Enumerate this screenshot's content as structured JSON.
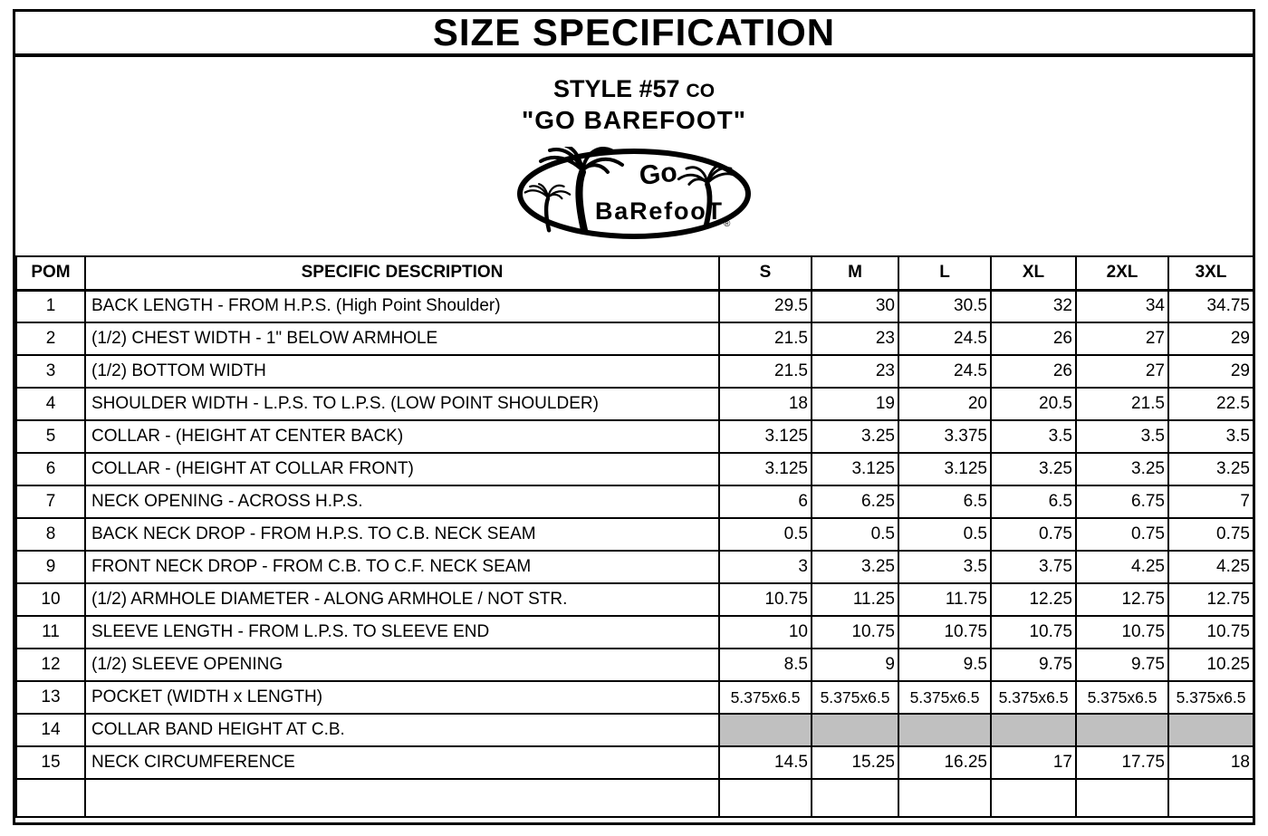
{
  "title": "SIZE SPECIFICATION",
  "header": {
    "style_label": "STYLE #57",
    "style_suffix": "CO",
    "product_name": "\"GO BAREFOOT\""
  },
  "logo": {
    "word_top": "Go",
    "word_bottom": "BaRefooT",
    "registered_mark": "®",
    "icon": "palm-tree"
  },
  "colors": {
    "border": "#000000",
    "shaded_cell": "#c0c0c0",
    "background": "#ffffff"
  },
  "table": {
    "headers": [
      "POM",
      "SPECIFIC DESCRIPTION",
      "S",
      "M",
      "L",
      "XL",
      "2XL",
      "3XL"
    ],
    "rows": [
      {
        "pom": "1",
        "desc": "BACK LENGTH - FROM H.P.S. (High Point Shoulder)",
        "values": [
          "29.5",
          "30",
          "30.5",
          "32",
          "34",
          "34.75"
        ]
      },
      {
        "pom": "2",
        "desc": "(1/2) CHEST WIDTH - 1\" BELOW ARMHOLE",
        "values": [
          "21.5",
          "23",
          "24.5",
          "26",
          "27",
          "29"
        ]
      },
      {
        "pom": "3",
        "desc": "(1/2) BOTTOM WIDTH",
        "values": [
          "21.5",
          "23",
          "24.5",
          "26",
          "27",
          "29"
        ]
      },
      {
        "pom": "4",
        "desc": "SHOULDER WIDTH - L.P.S. TO L.P.S. (LOW POINT SHOULDER)",
        "values": [
          "18",
          "19",
          "20",
          "20.5",
          "21.5",
          "22.5"
        ]
      },
      {
        "pom": "5",
        "desc": "COLLAR - (HEIGHT AT CENTER BACK)",
        "values": [
          "3.125",
          "3.25",
          "3.375",
          "3.5",
          "3.5",
          "3.5"
        ]
      },
      {
        "pom": "6",
        "desc": "COLLAR - (HEIGHT AT COLLAR FRONT)",
        "values": [
          "3.125",
          "3.125",
          "3.125",
          "3.25",
          "3.25",
          "3.25"
        ]
      },
      {
        "pom": "7",
        "desc": "NECK OPENING - ACROSS H.P.S.",
        "values": [
          "6",
          "6.25",
          "6.5",
          "6.5",
          "6.75",
          "7"
        ]
      },
      {
        "pom": "8",
        "desc": "BACK NECK DROP - FROM H.P.S. TO C.B. NECK SEAM",
        "values": [
          "0.5",
          "0.5",
          "0.5",
          "0.75",
          "0.75",
          "0.75"
        ]
      },
      {
        "pom": "9",
        "desc": "FRONT NECK DROP - FROM C.B. TO C.F. NECK SEAM",
        "values": [
          "3",
          "3.25",
          "3.5",
          "3.75",
          "4.25",
          "4.25"
        ]
      },
      {
        "pom": "10",
        "desc": "(1/2) ARMHOLE DIAMETER - ALONG ARMHOLE / NOT STR.",
        "values": [
          "10.75",
          "11.25",
          "11.75",
          "12.25",
          "12.75",
          "12.75"
        ]
      },
      {
        "pom": "11",
        "desc": "SLEEVE LENGTH - FROM L.P.S. TO SLEEVE END",
        "values": [
          "10",
          "10.75",
          "10.75",
          "10.75",
          "10.75",
          "10.75"
        ]
      },
      {
        "pom": "12",
        "desc": "(1/2) SLEEVE OPENING",
        "values": [
          "8.5",
          "9",
          "9.5",
          "9.75",
          "9.75",
          "10.25"
        ]
      },
      {
        "pom": "13",
        "desc": "POCKET (WIDTH x LENGTH)",
        "values": [
          "5.375x6.5",
          "5.375x6.5",
          "5.375x6.5",
          "5.375x6.5",
          "5.375x6.5",
          "5.375x6.5"
        ]
      },
      {
        "pom": "14",
        "desc": "COLLAR BAND HEIGHT AT C.B.",
        "values": [
          "",
          "",
          "",
          "",
          "",
          ""
        ],
        "shaded": true
      },
      {
        "pom": "15",
        "desc": "NECK CIRCUMFERENCE",
        "values": [
          "14.5",
          "15.25",
          "16.25",
          "17",
          "17.75",
          "18"
        ]
      },
      {
        "pom": "",
        "desc": "",
        "values": [
          "",
          "",
          "",
          "",
          "",
          ""
        ]
      }
    ]
  }
}
